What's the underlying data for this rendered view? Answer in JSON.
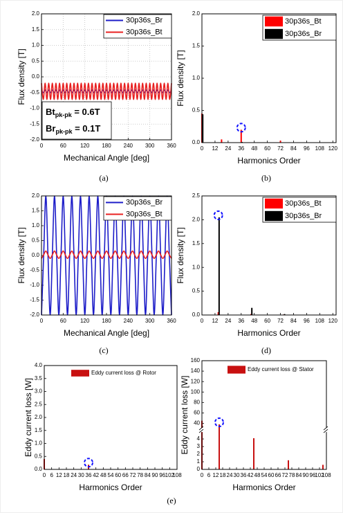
{
  "captions": [
    "(a)",
    "(b)",
    "(c)",
    "(d)",
    "(e)"
  ],
  "chart_data": [
    {
      "type": "line",
      "x_label": "Mechanical Angle [deg]",
      "y_label": "Flux density [T]",
      "grid": true,
      "legend": "upper right",
      "xlim": [
        0,
        360
      ],
      "xticks": [
        0,
        60,
        120,
        180,
        240,
        300,
        360
      ],
      "ylim": [
        -2,
        2
      ],
      "yticks": [
        {
          "value": -2,
          "label": "-2.0"
        },
        {
          "value": -1.5,
          "label": "-1.5"
        },
        {
          "value": -1,
          "label": "-1.0"
        },
        {
          "value": -0.5,
          "label": "-0.5"
        },
        {
          "value": 0,
          "label": "0.0"
        },
        {
          "value": 0.5,
          "label": "0.5"
        },
        {
          "value": 1,
          "label": "1.0"
        },
        {
          "value": 1.5,
          "label": "1.5"
        },
        {
          "value": 2,
          "label": "2.0"
        }
      ],
      "annotations": [
        {
          "text": "Bt",
          "sub": "pk-pk",
          "suffix": " = 0.6T"
        },
        {
          "text": "Br",
          "sub": "pk-pk",
          "suffix": " = 0.1T"
        }
      ],
      "x": [
        0,
        5,
        10,
        15,
        20,
        25,
        30,
        35,
        40,
        45,
        50,
        55,
        60,
        65,
        70,
        75,
        80,
        85,
        90,
        95,
        100,
        105,
        110,
        115,
        120,
        125,
        130,
        135,
        140,
        145,
        150,
        155,
        160,
        165,
        170,
        175,
        180,
        185,
        190,
        195,
        200,
        205,
        210,
        215,
        220,
        225,
        230,
        235,
        240,
        245,
        250,
        255,
        260,
        265,
        270,
        275,
        280,
        285,
        290,
        295,
        300,
        305,
        310,
        315,
        320,
        325,
        330,
        335,
        340,
        345,
        350,
        355,
        360
      ],
      "series": [
        {
          "name": "30p36s_Br",
          "color": "#1c1cc8",
          "values": [
            -0.42,
            -0.5,
            -0.42,
            -0.5,
            -0.42,
            -0.5,
            -0.42,
            -0.5,
            -0.42,
            -0.5,
            -0.42,
            -0.5,
            -0.42,
            -0.5,
            -0.42,
            -0.5,
            -0.42,
            -0.5,
            -0.42,
            -0.5,
            -0.42,
            -0.5,
            -0.42,
            -0.5,
            -0.42,
            -0.5,
            -0.42,
            -0.5,
            -0.42,
            -0.5,
            -0.42,
            -0.5,
            -0.42,
            -0.5,
            -0.42,
            -0.5,
            -0.42,
            -0.5,
            -0.42,
            -0.5,
            -0.42,
            -0.5,
            -0.42,
            -0.5,
            -0.42,
            -0.5,
            -0.42,
            -0.5,
            -0.42,
            -0.5,
            -0.42,
            -0.5,
            -0.42,
            -0.5,
            -0.42,
            -0.5,
            -0.42,
            -0.5,
            -0.42,
            -0.5,
            -0.42,
            -0.5,
            -0.42,
            -0.5,
            -0.42,
            -0.5,
            -0.42,
            -0.5,
            -0.42,
            -0.5,
            -0.42,
            -0.5,
            -0.42
          ]
        },
        {
          "name": "30p36s_Bt",
          "color": "#e82020",
          "values": [
            -0.2,
            -0.72,
            -0.2,
            -0.72,
            -0.2,
            -0.72,
            -0.2,
            -0.72,
            -0.2,
            -0.72,
            -0.2,
            -0.72,
            -0.2,
            -0.72,
            -0.2,
            -0.72,
            -0.2,
            -0.72,
            -0.2,
            -0.72,
            -0.2,
            -0.72,
            -0.2,
            -0.72,
            -0.2,
            -0.72,
            -0.2,
            -0.72,
            -0.2,
            -0.72,
            -0.2,
            -0.72,
            -0.2,
            -0.72,
            -0.2,
            -0.72,
            -0.2,
            -0.72,
            -0.2,
            -0.72,
            -0.2,
            -0.72,
            -0.2,
            -0.72,
            -0.2,
            -0.72,
            -0.2,
            -0.72,
            -0.2,
            -0.72,
            -0.2,
            -0.72,
            -0.2,
            -0.72,
            -0.2,
            -0.72,
            -0.2,
            -0.72,
            -0.2,
            -0.72,
            -0.2,
            -0.72,
            -0.2,
            -0.72,
            -0.2,
            -0.72,
            -0.2,
            -0.72,
            -0.2,
            -0.72,
            -0.2,
            -0.72,
            -0.2
          ]
        }
      ]
    },
    {
      "type": "bar",
      "x_label": "Harmonics Order",
      "y_label": "Flux density [T]",
      "grid": false,
      "legend": "upper right",
      "highlight": 36,
      "xlim": [
        0,
        123
      ],
      "xticks": [
        0,
        12,
        24,
        36,
        48,
        60,
        72,
        84,
        96,
        108,
        120
      ],
      "ylim": [
        0,
        2
      ],
      "yticks": [
        {
          "value": 0,
          "label": "0.0"
        },
        {
          "value": 0.5,
          "label": "0.5"
        },
        {
          "value": 1,
          "label": "1.0"
        },
        {
          "value": 1.5,
          "label": "1.5"
        },
        {
          "value": 2,
          "label": "2.0"
        }
      ],
      "x": [
        0,
        18,
        36,
        72
      ],
      "series": [
        {
          "name": "30p36s_Bt",
          "color": "#ff0000",
          "values": [
            0.45,
            0.05,
            0.2,
            0.03
          ]
        },
        {
          "name": "30p36s_Br",
          "color": "#000000",
          "values": [
            0.44,
            0,
            0.01,
            0
          ]
        }
      ]
    },
    {
      "type": "line",
      "x_label": "Mechanical Angle [deg]",
      "y_label": "Flux density [T]",
      "grid": false,
      "legend": "upper right",
      "xlim": [
        0,
        360
      ],
      "xticks": [
        0,
        60,
        120,
        180,
        240,
        300,
        360
      ],
      "ylim": [
        -2,
        2
      ],
      "yticks": [
        {
          "value": -2,
          "label": "-2.0"
        },
        {
          "value": -1.5,
          "label": "-1.5"
        },
        {
          "value": -1,
          "label": "-1.0"
        },
        {
          "value": -0.5,
          "label": "-0.5"
        },
        {
          "value": 0,
          "label": "0.0"
        },
        {
          "value": 0.5,
          "label": "0.5"
        },
        {
          "value": 1,
          "label": "1.0"
        },
        {
          "value": 1.5,
          "label": "1.5"
        },
        {
          "value": 2,
          "label": "2.0"
        }
      ],
      "x": [
        0,
        6,
        12,
        18,
        24,
        30,
        36,
        42,
        48,
        54,
        60,
        66,
        72,
        78,
        84,
        90,
        96,
        102,
        108,
        114,
        120,
        126,
        132,
        138,
        144,
        150,
        156,
        162,
        168,
        174,
        180,
        186,
        192,
        198,
        204,
        210,
        216,
        222,
        228,
        234,
        240,
        246,
        252,
        258,
        264,
        270,
        276,
        282,
        288,
        294,
        300,
        306,
        312,
        318,
        324,
        330,
        336,
        342,
        348,
        354,
        360
      ],
      "series": [
        {
          "name": "30p36s_Br",
          "color": "#1c1cc8",
          "values": [
            -2,
            0,
            2,
            0,
            -2,
            0,
            2,
            0,
            -2,
            0,
            2,
            0,
            -2,
            0,
            2,
            0,
            -2,
            0,
            2,
            0,
            -2,
            0,
            2,
            0,
            -2,
            0,
            2,
            0,
            -2,
            0,
            2,
            0,
            -2,
            0,
            2,
            0,
            -2,
            0,
            2,
            0,
            -2,
            0,
            2,
            0,
            -2,
            0,
            2,
            0,
            -2,
            0,
            2,
            0,
            -2,
            0,
            2,
            0,
            -2,
            0,
            2,
            0,
            -2
          ]
        },
        {
          "name": "30p36s_Bt",
          "color": "#e82020",
          "values": [
            -0.1,
            0.02,
            0.15,
            0.02,
            -0.1,
            0.02,
            0.15,
            0.02,
            -0.1,
            0.02,
            0.15,
            0.02,
            -0.1,
            0.02,
            0.15,
            0.02,
            -0.1,
            0.02,
            0.15,
            0.02,
            -0.1,
            0.02,
            0.15,
            0.02,
            -0.1,
            0.02,
            0.15,
            0.02,
            -0.1,
            0.02,
            0.15,
            0.02,
            -0.1,
            0.02,
            0.15,
            0.02,
            -0.1,
            0.02,
            0.15,
            0.02,
            -0.1,
            0.02,
            0.15,
            0.02,
            -0.1,
            0.02,
            0.15,
            0.02,
            -0.1,
            0.02,
            0.15,
            0.02,
            -0.1,
            0.02,
            0.15,
            0.02,
            -0.1,
            0.02,
            0.15,
            0.02,
            -0.1
          ]
        }
      ]
    },
    {
      "type": "bar",
      "x_label": "Harmonics Order",
      "y_label": "Flux density [T]",
      "grid": false,
      "legend": "upper right",
      "highlight": 15,
      "xlim": [
        0,
        123
      ],
      "xticks": [
        0,
        12,
        24,
        36,
        48,
        60,
        72,
        84,
        96,
        108,
        120
      ],
      "ylim": [
        0,
        2.5
      ],
      "yticks": [
        {
          "value": 0,
          "label": "0.0"
        },
        {
          "value": 0.5,
          "label": "0.5"
        },
        {
          "value": 1,
          "label": "1.0"
        },
        {
          "value": 1.5,
          "label": "1.5"
        },
        {
          "value": 2,
          "label": "2.0"
        },
        {
          "value": 2.5,
          "label": "2.5"
        }
      ],
      "x": [
        15,
        45,
        75
      ],
      "series": [
        {
          "name": "30p36s_Bt",
          "color": "#ff0000",
          "values": [
            0.06,
            0.02,
            0.01
          ]
        },
        {
          "name": "30p36s_Br",
          "color": "#000000",
          "values": [
            2.05,
            0.15,
            0.02
          ]
        }
      ]
    },
    {
      "type": "bar",
      "x_label": "Harmonics Order",
      "y_label": "Eddy current loss [W]",
      "grid": false,
      "legend": "upper right",
      "highlight": 36,
      "xlim": [
        0,
        108
      ],
      "xticks": [
        0,
        6,
        12,
        18,
        24,
        30,
        36,
        42,
        48,
        54,
        60,
        66,
        72,
        78,
        84,
        90,
        96,
        102,
        108
      ],
      "ylim": [
        0,
        4
      ],
      "yticks": [
        {
          "value": 0,
          "label": "0.0"
        },
        {
          "value": 0.5,
          "label": "0.5"
        },
        {
          "value": 1,
          "label": "1.0"
        },
        {
          "value": 1.5,
          "label": "1.5"
        },
        {
          "value": 2,
          "label": "2.0"
        },
        {
          "value": 2.5,
          "label": "2.5"
        },
        {
          "value": 3,
          "label": "3.0"
        },
        {
          "value": 3.5,
          "label": "3.5"
        },
        {
          "value": 4,
          "label": "4.0"
        }
      ],
      "x": [
        0,
        36
      ],
      "series": [
        {
          "name": "Eddy current loss @ Rotor",
          "color": "#c81010",
          "values": [
            0.4,
            0.18
          ]
        }
      ]
    },
    {
      "type": "bar",
      "x_label": "Harmonics Order",
      "y_label": "Eddy current loss [W]",
      "grid": false,
      "legend": "upper right",
      "highlight": 15,
      "xlim": [
        0,
        108
      ],
      "xticks": [
        0,
        6,
        12,
        18,
        24,
        30,
        36,
        42,
        48,
        54,
        60,
        66,
        72,
        78,
        84,
        90,
        96,
        102,
        108
      ],
      "ylim": [
        0,
        160
      ],
      "ybreak": [
        5,
        30
      ],
      "yticks": [
        0,
        1,
        2,
        3,
        4,
        40,
        60,
        80,
        100,
        120,
        140,
        160
      ],
      "x": [
        0,
        15,
        45,
        75,
        105
      ],
      "series": [
        {
          "name": "Eddy current loss @ Stator",
          "color": "#c81010",
          "values": [
            45,
            38,
            4.1,
            1.2,
            0.6
          ]
        }
      ]
    }
  ]
}
